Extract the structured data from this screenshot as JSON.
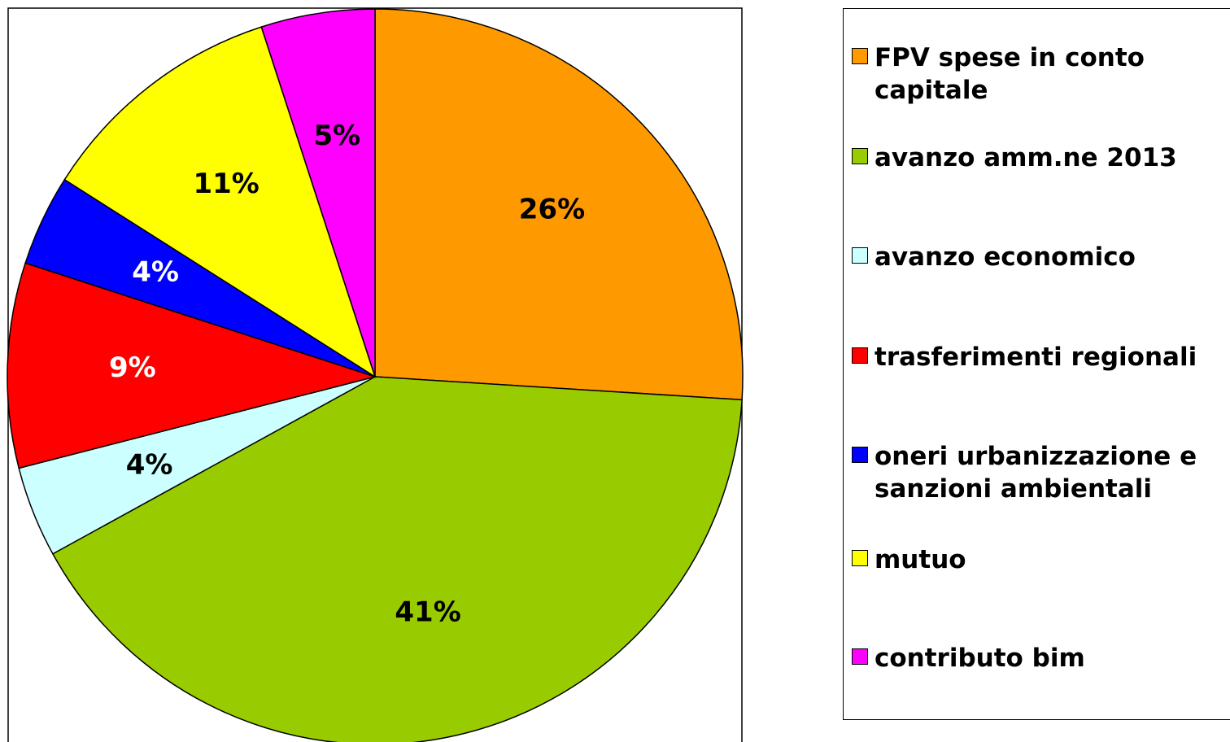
{
  "chart_data": {
    "type": "pie",
    "categories": [
      "FPV spese in conto capitale",
      "avanzo amm.ne 2013",
      "avanzo economico",
      "trasferimenti regionali",
      "oneri urbanizzazione e sanzioni ambientali",
      "mutuo",
      "contributo bim"
    ],
    "values": [
      26,
      41,
      4,
      9,
      4,
      11,
      5
    ],
    "value_labels": [
      "26%",
      "41%",
      "4%",
      "9%",
      "4%",
      "11%",
      "5%"
    ],
    "colors": [
      "#FF9900",
      "#99CC00",
      "#CCFFFF",
      "#FF0000",
      "#0000FF",
      "#FFFF00",
      "#FF00FF"
    ],
    "legend": "right"
  }
}
